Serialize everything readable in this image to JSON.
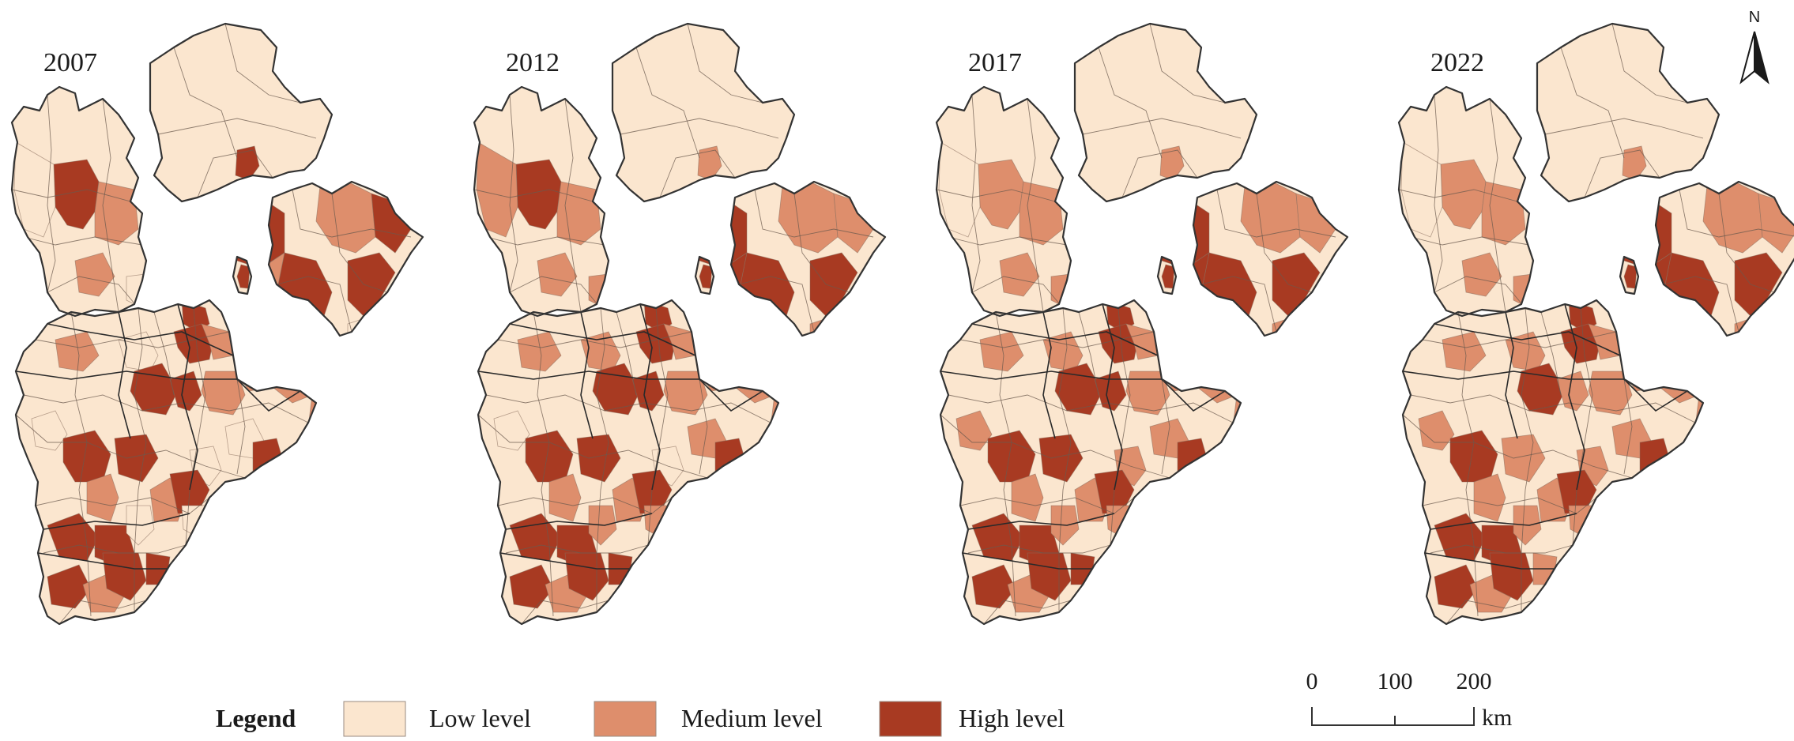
{
  "panels": [
    {
      "year": "2007",
      "levels": [
        "H",
        "L",
        "M",
        "H",
        "H",
        "H",
        "M",
        "M",
        "H",
        "H",
        "H",
        "L",
        "H",
        "M",
        "H",
        "H",
        "M",
        "M",
        "M",
        "M",
        "L",
        "H",
        "H",
        "M",
        "M",
        "L",
        "H",
        "L",
        "H",
        "H",
        "L",
        "H",
        "M",
        "H",
        "H",
        "L",
        "M",
        "L",
        "M",
        "L",
        "H",
        "M",
        "H",
        "L",
        "M"
      ]
    },
    {
      "year": "2012",
      "levels": [
        "H",
        "M",
        "M",
        "M",
        "H",
        "H",
        "M",
        "H",
        "H",
        "M",
        "H",
        "M",
        "H",
        "M",
        "H",
        "H",
        "M",
        "M",
        "M",
        "M",
        "L",
        "H",
        "H",
        "M",
        "M",
        "L",
        "H",
        "M",
        "H",
        "H",
        "M",
        "H",
        "M",
        "H",
        "H",
        "M",
        "M",
        "L",
        "M",
        "M",
        "H",
        "M",
        "H",
        "M",
        "M"
      ]
    },
    {
      "year": "2017",
      "levels": [
        "M",
        "L",
        "M",
        "M",
        "H",
        "H",
        "M",
        "H",
        "H",
        "M",
        "H",
        "M",
        "H",
        "M",
        "H",
        "H",
        "M",
        "M",
        "M",
        "M",
        "M",
        "H",
        "H",
        "M",
        "M",
        "M",
        "H",
        "M",
        "H",
        "H",
        "M",
        "H",
        "M",
        "H",
        "H",
        "M",
        "M",
        "M",
        "M",
        "M",
        "H",
        "M",
        "H",
        "M",
        "M"
      ]
    },
    {
      "year": "2022",
      "levels": [
        "M",
        "L",
        "M",
        "M",
        "H",
        "H",
        "M",
        "H",
        "H",
        "M",
        "H",
        "M",
        "H",
        "M",
        "H",
        "M",
        "M",
        "M",
        "M",
        "M",
        "M",
        "H",
        "M",
        "M",
        "M",
        "M",
        "H",
        "M",
        "H",
        "H",
        "M",
        "H",
        "M",
        "H",
        "M",
        "M",
        "M",
        "M",
        "M",
        "M",
        "H",
        "M",
        "H",
        "M",
        "M"
      ]
    }
  ],
  "legend": {
    "title": "Legend",
    "items": [
      {
        "key": "L",
        "label": "Low level",
        "color": "#fbe6cf"
      },
      {
        "key": "M",
        "label": "Medium level",
        "color": "#de8e6c"
      },
      {
        "key": "H",
        "label": "High level",
        "color": "#a83a22"
      }
    ]
  },
  "scale_bar": {
    "ticks": [
      "0",
      "100",
      "200"
    ],
    "unit": "km"
  },
  "north_arrow": {
    "label": "N"
  }
}
